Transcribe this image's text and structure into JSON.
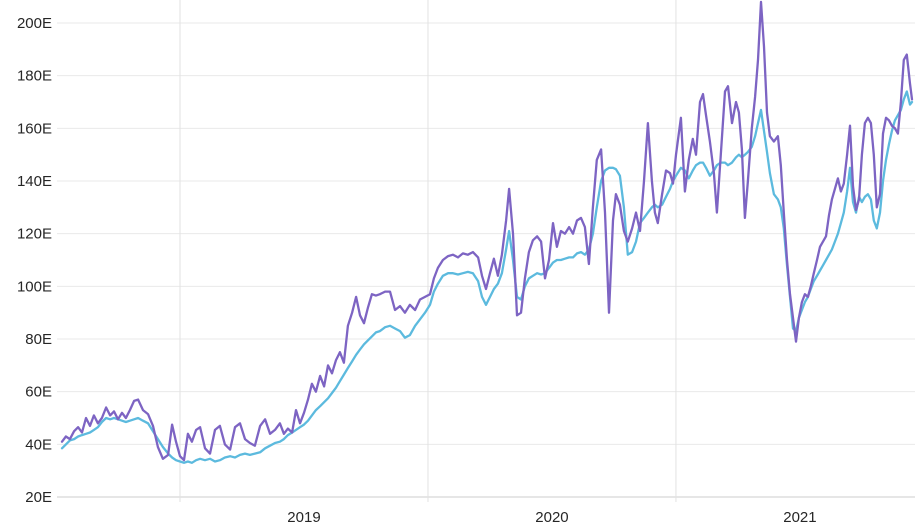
{
  "chart_data": {
    "type": "line",
    "title": "",
    "legend": "none",
    "grid": true,
    "y_label_suffix": "E",
    "x_range": [
      2018.504,
      2021.964
    ],
    "y_range": [
      7.1,
      208.73
    ],
    "colors": {
      "background": "#ffffff",
      "grid_horizontal": "#e9e9e9",
      "grid_vertical": "#e2e2e2",
      "axis_bottom_line": "#cccccc",
      "tick_text": "#262626",
      "series_violet": "#7d64c3",
      "series_blue": "#5cbade"
    },
    "x_ticks": [
      {
        "value": 2019,
        "label": "2019"
      },
      {
        "value": 2020,
        "label": "2020"
      },
      {
        "value": 2021,
        "label": "2021"
      }
    ],
    "y_ticks": [
      {
        "value": 20,
        "label": "20E"
      },
      {
        "value": 40,
        "label": "40E"
      },
      {
        "value": 60,
        "label": "60E"
      },
      {
        "value": 80,
        "label": "80E"
      },
      {
        "value": 100,
        "label": "100E"
      },
      {
        "value": 120,
        "label": "120E"
      },
      {
        "value": 140,
        "label": "140E"
      },
      {
        "value": 160,
        "label": "160E"
      },
      {
        "value": 180,
        "label": "180E"
      },
      {
        "value": 200,
        "label": "200E"
      }
    ],
    "series_names": [
      "violet",
      "sky-blue"
    ],
    "series_colors": [
      "#7d64c3",
      "#5cbade"
    ],
    "points": [
      [
        2018.524,
        41,
        38.5
      ],
      [
        2018.54,
        43,
        40
      ],
      [
        2018.556,
        42,
        41.5
      ],
      [
        2018.573,
        45,
        42
      ],
      [
        2018.589,
        46.5,
        43
      ],
      [
        2018.605,
        44.5,
        43.5
      ],
      [
        2018.621,
        50,
        44
      ],
      [
        2018.637,
        47,
        44.5
      ],
      [
        2018.653,
        51,
        45.5
      ],
      [
        2018.669,
        48,
        46.5
      ],
      [
        2018.685,
        50,
        48.5
      ],
      [
        2018.702,
        54,
        50
      ],
      [
        2018.718,
        51,
        49.5
      ],
      [
        2018.734,
        52.5,
        50
      ],
      [
        2018.75,
        49.5,
        49.5
      ],
      [
        2018.766,
        52,
        49
      ],
      [
        2018.782,
        50,
        48.5
      ],
      [
        2018.798,
        53,
        49
      ],
      [
        2018.815,
        56.5,
        49.5
      ],
      [
        2018.831,
        57,
        50
      ],
      [
        2018.851,
        53,
        49
      ],
      [
        2018.871,
        51.5,
        48
      ],
      [
        2018.891,
        47,
        45
      ],
      [
        2018.911,
        39,
        42
      ],
      [
        2018.931,
        34.5,
        39
      ],
      [
        2018.952,
        36,
        36.5
      ],
      [
        2018.968,
        47.5,
        35
      ],
      [
        2018.984,
        41,
        34
      ],
      [
        2019.0,
        35.5,
        33.5
      ],
      [
        2019.016,
        34,
        33
      ],
      [
        2019.032,
        44,
        33.5
      ],
      [
        2019.048,
        41,
        33
      ],
      [
        2019.065,
        45.5,
        34
      ],
      [
        2019.081,
        46.5,
        34.5
      ],
      [
        2019.101,
        38.5,
        34
      ],
      [
        2019.121,
        36.5,
        34.5
      ],
      [
        2019.141,
        45.5,
        33.5
      ],
      [
        2019.161,
        47,
        34
      ],
      [
        2019.181,
        40,
        35
      ],
      [
        2019.202,
        38,
        35.5
      ],
      [
        2019.222,
        46.5,
        35
      ],
      [
        2019.242,
        48,
        36
      ],
      [
        2019.262,
        42,
        36.5
      ],
      [
        2019.282,
        40.5,
        36
      ],
      [
        2019.302,
        39.5,
        36.5
      ],
      [
        2019.323,
        47,
        37
      ],
      [
        2019.343,
        49.5,
        38.5
      ],
      [
        2019.363,
        44,
        39.5
      ],
      [
        2019.383,
        45.5,
        40.5
      ],
      [
        2019.403,
        48,
        41
      ],
      [
        2019.419,
        44,
        42
      ],
      [
        2019.435,
        46,
        43.5
      ],
      [
        2019.452,
        44.5,
        44.5
      ],
      [
        2019.468,
        53,
        45.5
      ],
      [
        2019.484,
        48,
        46.5
      ],
      [
        2019.5,
        52,
        47.5
      ],
      [
        2019.516,
        57,
        49
      ],
      [
        2019.532,
        63,
        51
      ],
      [
        2019.548,
        60,
        53
      ],
      [
        2019.565,
        66,
        54.5
      ],
      [
        2019.581,
        62,
        56
      ],
      [
        2019.597,
        70,
        57.5
      ],
      [
        2019.613,
        67,
        59.5
      ],
      [
        2019.629,
        72,
        61.5
      ],
      [
        2019.645,
        75,
        64
      ],
      [
        2019.661,
        71,
        66.5
      ],
      [
        2019.677,
        85,
        69
      ],
      [
        2019.694,
        90,
        71.5
      ],
      [
        2019.71,
        96,
        74
      ],
      [
        2019.726,
        89,
        76
      ],
      [
        2019.742,
        86,
        78
      ],
      [
        2019.758,
        92,
        79.5
      ],
      [
        2019.774,
        97,
        81
      ],
      [
        2019.79,
        96.5,
        82.5
      ],
      [
        2019.806,
        97,
        83
      ],
      [
        2019.827,
        98,
        84.5
      ],
      [
        2019.847,
        98,
        85
      ],
      [
        2019.867,
        91,
        84
      ],
      [
        2019.887,
        92.5,
        83
      ],
      [
        2019.907,
        90,
        80.5
      ],
      [
        2019.927,
        93,
        81.5
      ],
      [
        2019.948,
        91,
        85
      ],
      [
        2019.968,
        95,
        87.5
      ],
      [
        2019.988,
        96,
        90
      ],
      [
        2020.008,
        97,
        93
      ],
      [
        2020.024,
        103,
        98
      ],
      [
        2020.04,
        107,
        101
      ],
      [
        2020.06,
        110,
        104
      ],
      [
        2020.081,
        111.5,
        105
      ],
      [
        2020.101,
        112,
        105
      ],
      [
        2020.121,
        111,
        104.5
      ],
      [
        2020.141,
        112.5,
        105
      ],
      [
        2020.161,
        112,
        105.5
      ],
      [
        2020.181,
        113,
        105
      ],
      [
        2020.202,
        111,
        102
      ],
      [
        2020.218,
        104,
        96
      ],
      [
        2020.234,
        99,
        93
      ],
      [
        2020.25,
        105,
        96
      ],
      [
        2020.266,
        110.5,
        99
      ],
      [
        2020.282,
        104,
        101
      ],
      [
        2020.298,
        112,
        105
      ],
      [
        2020.315,
        125,
        114
      ],
      [
        2020.327,
        137,
        121
      ],
      [
        2020.343,
        120,
        110
      ],
      [
        2020.359,
        89,
        96
      ],
      [
        2020.375,
        90,
        95
      ],
      [
        2020.391,
        103,
        100
      ],
      [
        2020.407,
        113,
        103
      ],
      [
        2020.423,
        117.5,
        104
      ],
      [
        2020.44,
        119,
        105
      ],
      [
        2020.456,
        117,
        104.5
      ],
      [
        2020.472,
        103,
        105
      ],
      [
        2020.488,
        110,
        107
      ],
      [
        2020.504,
        124,
        109
      ],
      [
        2020.52,
        115,
        110
      ],
      [
        2020.536,
        121,
        110
      ],
      [
        2020.552,
        120,
        110.5
      ],
      [
        2020.569,
        122.5,
        111
      ],
      [
        2020.585,
        120,
        111
      ],
      [
        2020.601,
        125,
        112.5
      ],
      [
        2020.617,
        126,
        113
      ],
      [
        2020.633,
        122.5,
        112
      ],
      [
        2020.649,
        108.5,
        114
      ],
      [
        2020.665,
        130,
        120
      ],
      [
        2020.681,
        148,
        130
      ],
      [
        2020.698,
        152,
        140
      ],
      [
        2020.714,
        128,
        144
      ],
      [
        2020.73,
        90,
        145
      ],
      [
        2020.746,
        125,
        145
      ],
      [
        2020.758,
        135,
        144.5
      ],
      [
        2020.774,
        131,
        142
      ],
      [
        2020.79,
        121,
        130
      ],
      [
        2020.806,
        117,
        112
      ],
      [
        2020.823,
        122,
        113
      ],
      [
        2020.839,
        128,
        117
      ],
      [
        2020.855,
        121,
        124
      ],
      [
        2020.871,
        140,
        126
      ],
      [
        2020.887,
        162,
        128
      ],
      [
        2020.903,
        140,
        130
      ],
      [
        2020.915,
        128,
        131
      ],
      [
        2020.927,
        124,
        130
      ],
      [
        2020.944,
        135,
        131
      ],
      [
        2020.96,
        144,
        134
      ],
      [
        2020.976,
        143,
        137
      ],
      [
        2020.988,
        139,
        140
      ],
      [
        2021.0,
        150,
        142
      ],
      [
        2021.02,
        164,
        145
      ],
      [
        2021.036,
        136,
        144
      ],
      [
        2021.052,
        148,
        141
      ],
      [
        2021.068,
        156,
        144
      ],
      [
        2021.081,
        150,
        146
      ],
      [
        2021.097,
        170,
        147
      ],
      [
        2021.109,
        173,
        147
      ],
      [
        2021.121,
        165,
        145
      ],
      [
        2021.137,
        155,
        142
      ],
      [
        2021.153,
        143,
        144
      ],
      [
        2021.165,
        128,
        146
      ],
      [
        2021.181,
        150,
        147
      ],
      [
        2021.198,
        174,
        147
      ],
      [
        2021.21,
        176,
        146
      ],
      [
        2021.226,
        162,
        147
      ],
      [
        2021.242,
        170,
        149
      ],
      [
        2021.254,
        166,
        150
      ],
      [
        2021.266,
        152,
        149
      ],
      [
        2021.278,
        126,
        150
      ],
      [
        2021.29,
        140,
        151
      ],
      [
        2021.306,
        160,
        153
      ],
      [
        2021.319,
        172,
        157
      ],
      [
        2021.331,
        186,
        162
      ],
      [
        2021.343,
        208,
        167
      ],
      [
        2021.355,
        191,
        159
      ],
      [
        2021.367,
        166,
        151
      ],
      [
        2021.379,
        157,
        143
      ],
      [
        2021.395,
        155,
        135
      ],
      [
        2021.411,
        157,
        133
      ],
      [
        2021.423,
        146,
        130
      ],
      [
        2021.435,
        128,
        122
      ],
      [
        2021.448,
        110,
        108
      ],
      [
        2021.46,
        97,
        96
      ],
      [
        2021.472,
        88,
        84
      ],
      [
        2021.484,
        79,
        83
      ],
      [
        2021.496,
        88,
        88
      ],
      [
        2021.508,
        94,
        91
      ],
      [
        2021.52,
        97,
        94
      ],
      [
        2021.532,
        96,
        96
      ],
      [
        2021.544,
        100,
        99
      ],
      [
        2021.556,
        105,
        102
      ],
      [
        2021.569,
        110,
        104
      ],
      [
        2021.581,
        115,
        106
      ],
      [
        2021.593,
        117,
        108
      ],
      [
        2021.605,
        119,
        110
      ],
      [
        2021.617,
        127,
        112
      ],
      [
        2021.629,
        133,
        114
      ],
      [
        2021.641,
        137,
        117
      ],
      [
        2021.653,
        141,
        120
      ],
      [
        2021.665,
        136,
        124
      ],
      [
        2021.677,
        139,
        128
      ],
      [
        2021.69,
        150,
        136
      ],
      [
        2021.702,
        161,
        145
      ],
      [
        2021.714,
        138,
        132
      ],
      [
        2021.726,
        129,
        128
      ],
      [
        2021.738,
        133,
        134
      ],
      [
        2021.75,
        150,
        132
      ],
      [
        2021.762,
        162,
        134
      ],
      [
        2021.774,
        164,
        135
      ],
      [
        2021.786,
        162,
        133
      ],
      [
        2021.798,
        150,
        125
      ],
      [
        2021.81,
        130,
        122
      ],
      [
        2021.823,
        135,
        128
      ],
      [
        2021.835,
        158,
        140
      ],
      [
        2021.847,
        164,
        148
      ],
      [
        2021.859,
        163,
        154
      ],
      [
        2021.871,
        161,
        159
      ],
      [
        2021.883,
        160,
        163
      ],
      [
        2021.895,
        158,
        165
      ],
      [
        2021.907,
        170,
        167
      ],
      [
        2021.919,
        186,
        171
      ],
      [
        2021.931,
        188,
        174
      ],
      [
        2021.944,
        177,
        169
      ],
      [
        2021.952,
        171,
        170
      ]
    ]
  }
}
